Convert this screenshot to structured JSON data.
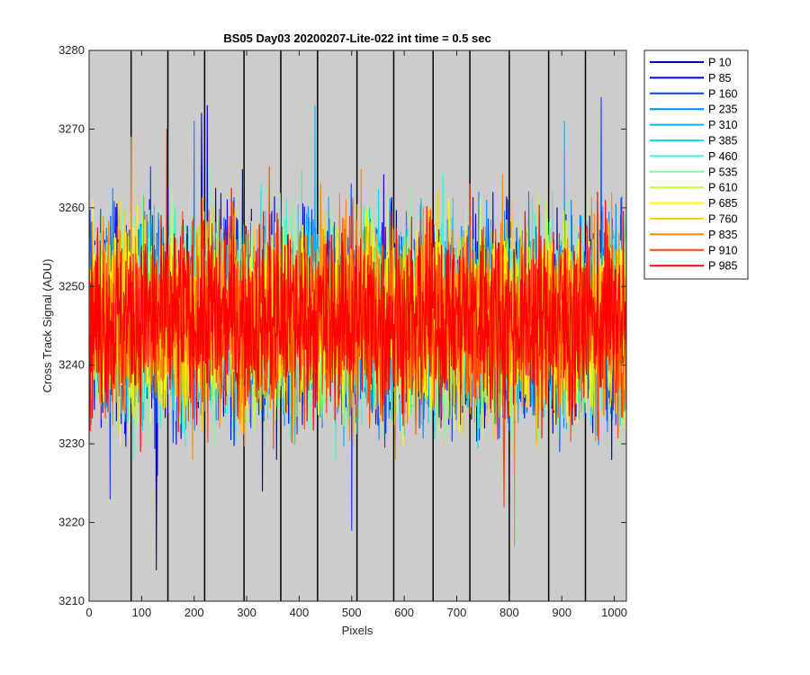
{
  "chart_data": {
    "type": "line",
    "title": "BS05 Day03 20200207-Lite-022 int time = 0.5 sec",
    "xlabel": "Pixels",
    "ylabel": "Cross Track Signal (ADU)",
    "xlim": [
      0,
      1023
    ],
    "ylim": [
      3210,
      3280
    ],
    "xticks": [
      0,
      100,
      200,
      300,
      400,
      500,
      600,
      700,
      800,
      900,
      1000
    ],
    "yticks": [
      3210,
      3220,
      3230,
      3240,
      3250,
      3260,
      3270,
      3280
    ],
    "background_color": "#cccccc",
    "vertical_lines_x": [
      80,
      150,
      220,
      295,
      365,
      435,
      510,
      580,
      655,
      725,
      800,
      875,
      945
    ],
    "series_mean": 3246,
    "series_noise_std": 6,
    "n_points": 1024,
    "legend_position": "outside-right",
    "series": [
      {
        "name": "P 10",
        "color": "#0000aa"
      },
      {
        "name": "P 85",
        "color": "#0000ff"
      },
      {
        "name": "P 160",
        "color": "#0044ff"
      },
      {
        "name": "P 235",
        "color": "#0088ff"
      },
      {
        "name": "P 310",
        "color": "#00b4ff"
      },
      {
        "name": "P 385",
        "color": "#00e0f0"
      },
      {
        "name": "P 460",
        "color": "#40f0d0"
      },
      {
        "name": "P 535",
        "color": "#80ffa0"
      },
      {
        "name": "P 610",
        "color": "#c0ff40"
      },
      {
        "name": "P 685",
        "color": "#ffff00"
      },
      {
        "name": "P 760",
        "color": "#ffcc00"
      },
      {
        "name": "P 835",
        "color": "#ff8800"
      },
      {
        "name": "P 910",
        "color": "#ff4400"
      },
      {
        "name": "P 985",
        "color": "#ff0000"
      }
    ],
    "outliers": [
      {
        "series": "P 160",
        "x": 40,
        "y": 3223
      },
      {
        "series": "P 10",
        "x": 128,
        "y": 3214
      },
      {
        "series": "P 85",
        "x": 130,
        "y": 3226
      },
      {
        "series": "P 235",
        "x": 200,
        "y": 3271
      },
      {
        "series": "P 85",
        "x": 214,
        "y": 3272
      },
      {
        "series": "P 85",
        "x": 225,
        "y": 3273
      },
      {
        "series": "P 835",
        "x": 80,
        "y": 3269
      },
      {
        "series": "P 985",
        "x": 148,
        "y": 3270
      },
      {
        "series": "P 310",
        "x": 430,
        "y": 3273
      },
      {
        "series": "P 160",
        "x": 500,
        "y": 3219
      },
      {
        "series": "P 835",
        "x": 810,
        "y": 3217
      },
      {
        "series": "P 310",
        "x": 905,
        "y": 3271
      },
      {
        "series": "P 160",
        "x": 975,
        "y": 3274
      },
      {
        "series": "P 910",
        "x": 790,
        "y": 3222
      },
      {
        "series": "P 10",
        "x": 330,
        "y": 3224
      }
    ]
  }
}
